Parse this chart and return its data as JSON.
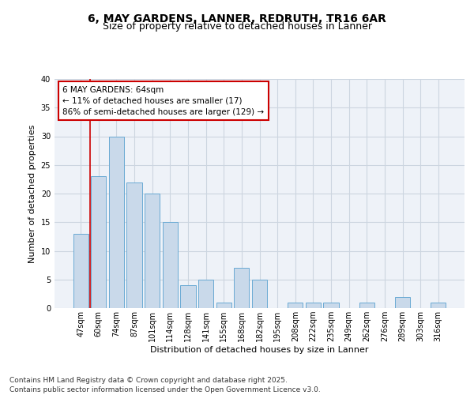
{
  "title1": "6, MAY GARDENS, LANNER, REDRUTH, TR16 6AR",
  "title2": "Size of property relative to detached houses in Lanner",
  "xlabel": "Distribution of detached houses by size in Lanner",
  "ylabel": "Number of detached properties",
  "categories": [
    "47sqm",
    "60sqm",
    "74sqm",
    "87sqm",
    "101sqm",
    "114sqm",
    "128sqm",
    "141sqm",
    "155sqm",
    "168sqm",
    "182sqm",
    "195sqm",
    "208sqm",
    "222sqm",
    "235sqm",
    "249sqm",
    "262sqm",
    "276sqm",
    "289sqm",
    "303sqm",
    "316sqm"
  ],
  "values": [
    13,
    23,
    30,
    22,
    20,
    15,
    4,
    5,
    1,
    7,
    5,
    0,
    1,
    1,
    1,
    0,
    1,
    0,
    2,
    0,
    1
  ],
  "bar_color": "#c9d9ea",
  "bar_edge_color": "#6aaad4",
  "grid_color": "#ccd5e0",
  "background_color": "#eef2f8",
  "vline_color": "#cc0000",
  "vline_index": 1,
  "annotation_title": "6 MAY GARDENS: 64sqm",
  "annotation_line1": "← 11% of detached houses are smaller (17)",
  "annotation_line2": "86% of semi-detached houses are larger (129) →",
  "annotation_box_color": "#cc0000",
  "ylim": [
    0,
    40
  ],
  "yticks": [
    0,
    5,
    10,
    15,
    20,
    25,
    30,
    35,
    40
  ],
  "footer1": "Contains HM Land Registry data © Crown copyright and database right 2025.",
  "footer2": "Contains public sector information licensed under the Open Government Licence v3.0.",
  "title_fontsize": 10,
  "subtitle_fontsize": 9,
  "axis_label_fontsize": 8,
  "tick_fontsize": 7,
  "annotation_fontsize": 7.5,
  "footer_fontsize": 6.5
}
